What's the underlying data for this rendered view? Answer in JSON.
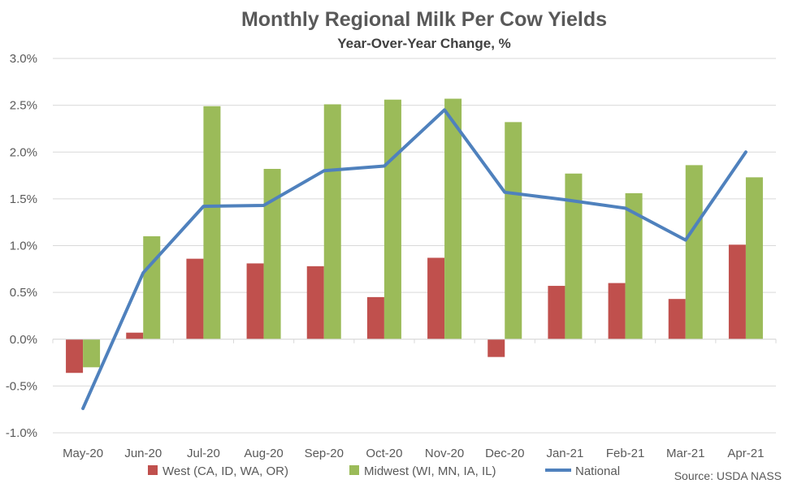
{
  "chart_data": {
    "type": "bar",
    "title": "Monthly Regional Milk Per Cow Yields",
    "subtitle": "Year-Over-Year Change, %",
    "categories": [
      "May-20",
      "Jun-20",
      "Jul-20",
      "Aug-20",
      "Sep-20",
      "Oct-20",
      "Nov-20",
      "Dec-20",
      "Jan-21",
      "Feb-21",
      "Mar-21",
      "Apr-21"
    ],
    "series": [
      {
        "name": "West (CA, ID, WA, OR)",
        "type": "bar",
        "color": "#c0504d",
        "values": [
          -0.36,
          0.07,
          0.86,
          0.81,
          0.78,
          0.45,
          0.87,
          -0.19,
          0.57,
          0.6,
          0.43,
          1.01
        ]
      },
      {
        "name": "Midwest (WI, MN, IA, IL)",
        "type": "bar",
        "color": "#9bbb59",
        "values": [
          -0.3,
          1.1,
          2.49,
          1.82,
          2.51,
          2.56,
          2.57,
          2.32,
          1.77,
          1.56,
          1.86,
          1.73
        ]
      },
      {
        "name": "National",
        "type": "line",
        "color": "#4f81bd",
        "values": [
          -0.74,
          0.71,
          1.42,
          1.43,
          1.8,
          1.85,
          2.45,
          1.57,
          1.49,
          1.4,
          1.06,
          2.0
        ]
      }
    ],
    "ylim": [
      -1.0,
      3.0
    ],
    "yticks": [
      -1.0,
      -0.5,
      0.0,
      0.5,
      1.0,
      1.5,
      2.0,
      2.5,
      3.0
    ],
    "ytick_labels": [
      "-1.0%",
      "-0.5%",
      "0.0%",
      "0.5%",
      "1.0%",
      "1.5%",
      "2.0%",
      "2.5%",
      "3.0%"
    ],
    "grid": true,
    "legend_position": "bottom",
    "source": "Source: USDA NASS"
  }
}
